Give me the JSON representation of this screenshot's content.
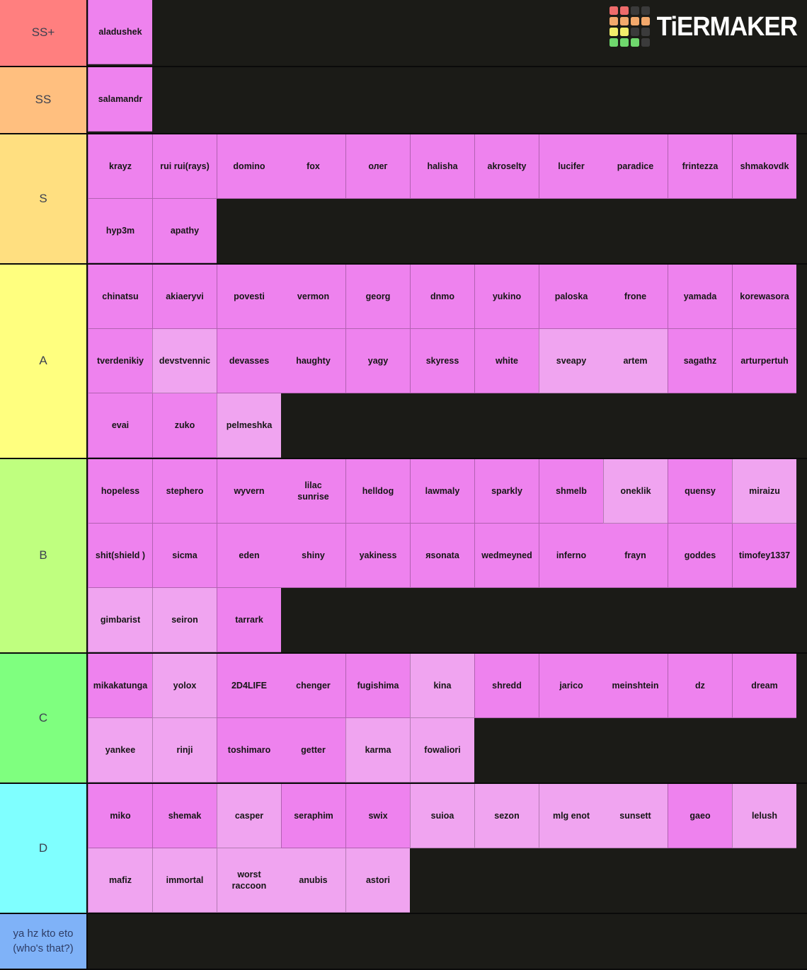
{
  "logo": {
    "text": "TiERMAKER",
    "grid_colors": [
      "#ef6b6b",
      "#ef6b6b",
      "#3b3b3b",
      "#3b3b3b",
      "#f3a96c",
      "#f3a96c",
      "#f3a96c",
      "#f3a96c",
      "#f2ee6b",
      "#f2ee6b",
      "#3b3b3b",
      "#3b3b3b",
      "#6fd76d",
      "#6fd76d",
      "#6fd76d",
      "#3b3b3b"
    ]
  },
  "colors": {
    "page_background": "#1b1b17",
    "cell_regular": "#ee82ee",
    "cell_light": "#f0a4f0",
    "label_text": "#3c4150"
  },
  "tiers": [
    {
      "label": "SS+",
      "color": "#ff7f7f",
      "cells": [
        {
          "t": "aladushek"
        }
      ]
    },
    {
      "label": "SS",
      "color": "#ffbf7f",
      "cells": [
        {
          "t": "salamandr"
        }
      ]
    },
    {
      "label": "S",
      "color": "#ffdf80",
      "cells": [
        {
          "t": "krayz"
        },
        {
          "t": "rui rui(rays)"
        },
        {
          "t": "domino"
        },
        {
          "t": "fox",
          "m": true
        },
        {
          "t": "олег"
        },
        {
          "t": "halisha"
        },
        {
          "t": "akroselty"
        },
        {
          "t": "lucifer"
        },
        {
          "t": "paradice",
          "m": true
        },
        {
          "t": "frintezza"
        },
        {
          "t": "shmakovdk"
        },
        {
          "t": "hyp3m"
        },
        {
          "t": "apathy"
        }
      ]
    },
    {
      "label": "A",
      "color": "#ffff7f",
      "cells": [
        {
          "t": "chinatsu"
        },
        {
          "t": "akiaeryvi"
        },
        {
          "t": "povesti"
        },
        {
          "t": "vermon",
          "m": true
        },
        {
          "t": "georg"
        },
        {
          "t": "dnmo"
        },
        {
          "t": "yukino"
        },
        {
          "t": "paloska"
        },
        {
          "t": "frone",
          "m": true
        },
        {
          "t": "yamada"
        },
        {
          "t": "korewasora"
        },
        {
          "t": "tverdenikiy"
        },
        {
          "t": "devstvennic",
          "s": "l"
        },
        {
          "t": "devasses"
        },
        {
          "t": "haughty",
          "m": true
        },
        {
          "t": "yagy"
        },
        {
          "t": "skyress"
        },
        {
          "t": "white"
        },
        {
          "t": "sveapy",
          "s": "l"
        },
        {
          "t": "artem",
          "s": "l",
          "m": true
        },
        {
          "t": "sagathz"
        },
        {
          "t": "arturpertuh"
        },
        {
          "t": "evai"
        },
        {
          "t": "zuko"
        },
        {
          "t": "pelmeshka",
          "s": "l"
        }
      ]
    },
    {
      "label": "B",
      "color": "#bfff7f",
      "cells": [
        {
          "t": "hopeless"
        },
        {
          "t": "stephero"
        },
        {
          "t": "wyvern"
        },
        {
          "t": "lilac\nsunrise",
          "m": true
        },
        {
          "t": "helldog"
        },
        {
          "t": "lawmaly"
        },
        {
          "t": "sparkly"
        },
        {
          "t": "shmelb"
        },
        {
          "t": "oneklik",
          "s": "l"
        },
        {
          "t": "quensy"
        },
        {
          "t": "miraizu",
          "s": "l"
        },
        {
          "t": "shit(shield )"
        },
        {
          "t": "sicma"
        },
        {
          "t": "eden"
        },
        {
          "t": "shiny",
          "m": true
        },
        {
          "t": "yakiness"
        },
        {
          "t": "яsonata"
        },
        {
          "t": "wedmeyned"
        },
        {
          "t": "inferno"
        },
        {
          "t": "frayn",
          "m": true
        },
        {
          "t": "goddes"
        },
        {
          "t": "timofey1337"
        },
        {
          "t": "gimbarist",
          "s": "l"
        },
        {
          "t": "seiron",
          "s": "l"
        },
        {
          "t": "tarrark"
        }
      ]
    },
    {
      "label": "C",
      "color": "#7fff7f",
      "cells": [
        {
          "t": "mikakatunga"
        },
        {
          "t": "yolox",
          "s": "l"
        },
        {
          "t": "2D4LIFE"
        },
        {
          "t": "chenger",
          "m": true
        },
        {
          "t": "fugishima"
        },
        {
          "t": "kina",
          "s": "l"
        },
        {
          "t": "shredd"
        },
        {
          "t": "jarico"
        },
        {
          "t": "meinshtein",
          "m": true
        },
        {
          "t": "dz"
        },
        {
          "t": "dream"
        },
        {
          "t": "yankee",
          "s": "l"
        },
        {
          "t": "rinji",
          "s": "l"
        },
        {
          "t": "toshimaro"
        },
        {
          "t": "getter",
          "m": true
        },
        {
          "t": "karma",
          "s": "l"
        },
        {
          "t": "fowaliori",
          "s": "l"
        }
      ]
    },
    {
      "label": "D",
      "color": "#7fffff",
      "cells": [
        {
          "t": "miko"
        },
        {
          "t": "shemak"
        },
        {
          "t": "casper",
          "s": "l"
        },
        {
          "t": "seraphim"
        },
        {
          "t": "swix"
        },
        {
          "t": "suioa",
          "s": "l"
        },
        {
          "t": "sezon",
          "s": "l"
        },
        {
          "t": "mlg enot",
          "s": "l"
        },
        {
          "t": "sunsett",
          "s": "l",
          "m": true
        },
        {
          "t": "gaeo"
        },
        {
          "t": "lelush",
          "s": "l"
        },
        {
          "t": "mafiz",
          "s": "l"
        },
        {
          "t": "immortal",
          "s": "l"
        },
        {
          "t": "worst\nraccoon",
          "s": "l"
        },
        {
          "t": "anubis",
          "s": "l",
          "m": true
        },
        {
          "t": "astori",
          "s": "l"
        }
      ]
    },
    {
      "label": "ya hz kto eto (who's that?)",
      "color": "#7fb2f8",
      "who": true,
      "cells": []
    }
  ]
}
